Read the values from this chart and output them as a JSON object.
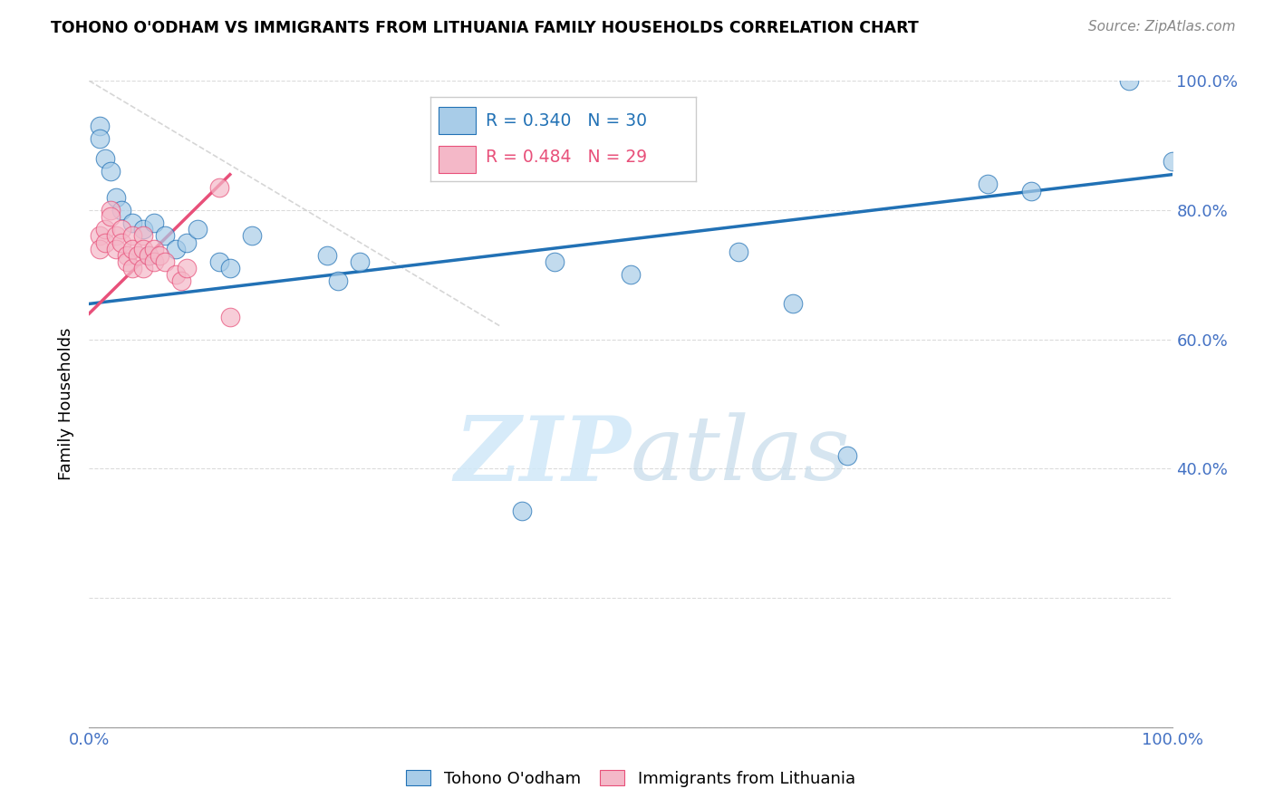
{
  "title": "TOHONO O'ODHAM VS IMMIGRANTS FROM LITHUANIA FAMILY HOUSEHOLDS CORRELATION CHART",
  "source": "Source: ZipAtlas.com",
  "ylabel": "Family Households",
  "watermark": "ZIPatlas",
  "legend": {
    "blue_r": "R = 0.340",
    "blue_n": "N = 30",
    "pink_r": "R = 0.484",
    "pink_n": "N = 29"
  },
  "blue_scatter": [
    [
      0.01,
      0.93
    ],
    [
      0.01,
      0.91
    ],
    [
      0.015,
      0.88
    ],
    [
      0.02,
      0.86
    ],
    [
      0.025,
      0.82
    ],
    [
      0.03,
      0.8
    ],
    [
      0.04,
      0.78
    ],
    [
      0.05,
      0.77
    ],
    [
      0.055,
      0.73
    ],
    [
      0.06,
      0.78
    ],
    [
      0.07,
      0.76
    ],
    [
      0.08,
      0.74
    ],
    [
      0.09,
      0.75
    ],
    [
      0.1,
      0.77
    ],
    [
      0.12,
      0.72
    ],
    [
      0.13,
      0.71
    ],
    [
      0.15,
      0.76
    ],
    [
      0.22,
      0.73
    ],
    [
      0.23,
      0.69
    ],
    [
      0.25,
      0.72
    ],
    [
      0.4,
      0.335
    ],
    [
      0.43,
      0.72
    ],
    [
      0.5,
      0.7
    ],
    [
      0.6,
      0.735
    ],
    [
      0.65,
      0.655
    ],
    [
      0.7,
      0.42
    ],
    [
      0.83,
      0.84
    ],
    [
      0.87,
      0.83
    ],
    [
      0.96,
      1.0
    ],
    [
      1.0,
      0.875
    ]
  ],
  "pink_scatter": [
    [
      0.01,
      0.76
    ],
    [
      0.01,
      0.74
    ],
    [
      0.015,
      0.77
    ],
    [
      0.015,
      0.75
    ],
    [
      0.02,
      0.8
    ],
    [
      0.02,
      0.79
    ],
    [
      0.025,
      0.76
    ],
    [
      0.025,
      0.74
    ],
    [
      0.03,
      0.77
    ],
    [
      0.03,
      0.75
    ],
    [
      0.035,
      0.73
    ],
    [
      0.035,
      0.72
    ],
    [
      0.04,
      0.76
    ],
    [
      0.04,
      0.74
    ],
    [
      0.04,
      0.71
    ],
    [
      0.045,
      0.73
    ],
    [
      0.05,
      0.76
    ],
    [
      0.05,
      0.74
    ],
    [
      0.05,
      0.71
    ],
    [
      0.055,
      0.73
    ],
    [
      0.06,
      0.74
    ],
    [
      0.06,
      0.72
    ],
    [
      0.065,
      0.73
    ],
    [
      0.07,
      0.72
    ],
    [
      0.08,
      0.7
    ],
    [
      0.085,
      0.69
    ],
    [
      0.09,
      0.71
    ],
    [
      0.12,
      0.835
    ],
    [
      0.13,
      0.635
    ]
  ],
  "blue_line": {
    "x0": 0.0,
    "y0": 0.655,
    "x1": 1.0,
    "y1": 0.855
  },
  "pink_line": {
    "x0": 0.0,
    "y0": 0.64,
    "x1": 0.13,
    "y1": 0.855
  },
  "ref_line": {
    "x0": 0.0,
    "y0": 1.0,
    "x1": 0.38,
    "y1": 0.62
  },
  "blue_color": "#a8cce8",
  "pink_color": "#f4b8c8",
  "blue_line_color": "#2171b5",
  "pink_line_color": "#e8507a",
  "ref_line_color": "#cccccc",
  "tick_color": "#4472c4",
  "grid_color": "#cccccc",
  "background_color": "#ffffff",
  "xlim": [
    0.0,
    1.0
  ],
  "ylim": [
    0.0,
    1.0
  ]
}
